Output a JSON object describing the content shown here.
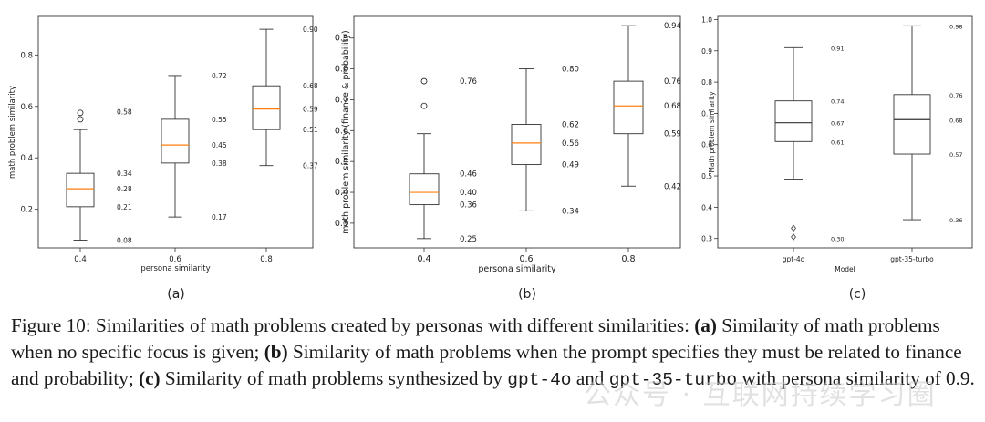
{
  "chart_data": [
    {
      "type": "box",
      "panel_label": "(a)",
      "xlabel": "persona similarity",
      "ylabel": "math problem similarity",
      "categories": [
        "0.4",
        "0.6",
        "0.8"
      ],
      "ylim": [
        0.05,
        0.95
      ],
      "yticks": [
        "0.2",
        "0.4",
        "0.6",
        "0.8"
      ],
      "median_color": "#ff7f0e",
      "boxes": [
        {
          "whislo": 0.08,
          "q1": 0.21,
          "med": 0.28,
          "q3": 0.34,
          "whishi": 0.51,
          "fliers": [
            0.55,
            0.575
          ],
          "labels": [
            {
              "v": 0.58,
              "t": "0.58"
            },
            {
              "v": 0.34,
              "t": "0.34"
            },
            {
              "v": 0.28,
              "t": "0.28"
            },
            {
              "v": 0.21,
              "t": "0.21"
            },
            {
              "v": 0.08,
              "t": "0.08"
            }
          ]
        },
        {
          "whislo": 0.17,
          "q1": 0.38,
          "med": 0.45,
          "q3": 0.55,
          "whishi": 0.72,
          "fliers": [],
          "labels": [
            {
              "v": 0.72,
              "t": "0.72"
            },
            {
              "v": 0.55,
              "t": "0.55"
            },
            {
              "v": 0.45,
              "t": "0.45"
            },
            {
              "v": 0.38,
              "t": "0.38"
            },
            {
              "v": 0.17,
              "t": "0.17"
            }
          ]
        },
        {
          "whislo": 0.37,
          "q1": 0.51,
          "med": 0.59,
          "q3": 0.68,
          "whishi": 0.9,
          "fliers": [],
          "labels": [
            {
              "v": 0.9,
              "t": "0.90"
            },
            {
              "v": 0.68,
              "t": "0.68"
            },
            {
              "v": 0.59,
              "t": "0.59"
            },
            {
              "v": 0.51,
              "t": "0.51"
            },
            {
              "v": 0.37,
              "t": "0.37"
            }
          ]
        }
      ]
    },
    {
      "type": "box",
      "panel_label": "(b)",
      "xlabel": "persona similarity",
      "ylabel": "math problem similarity (finance & probability)",
      "categories": [
        "0.4",
        "0.6",
        "0.8"
      ],
      "ylim": [
        0.22,
        0.97
      ],
      "yticks": [
        "0.3",
        "0.4",
        "0.5",
        "0.6",
        "0.7",
        "0.8",
        "0.9"
      ],
      "median_color": "#ff7f0e",
      "boxes": [
        {
          "whislo": 0.25,
          "q1": 0.36,
          "med": 0.4,
          "q3": 0.46,
          "whishi": 0.59,
          "fliers": [
            0.68,
            0.76
          ],
          "labels": [
            {
              "v": 0.76,
              "t": "0.76"
            },
            {
              "v": 0.46,
              "t": "0.46"
            },
            {
              "v": 0.4,
              "t": "0.40"
            },
            {
              "v": 0.36,
              "t": "0.36"
            },
            {
              "v": 0.25,
              "t": "0.25"
            }
          ]
        },
        {
          "whislo": 0.34,
          "q1": 0.49,
          "med": 0.56,
          "q3": 0.62,
          "whishi": 0.8,
          "fliers": [],
          "labels": [
            {
              "v": 0.8,
              "t": "0.80"
            },
            {
              "v": 0.62,
              "t": "0.62"
            },
            {
              "v": 0.56,
              "t": "0.56"
            },
            {
              "v": 0.49,
              "t": "0.49"
            },
            {
              "v": 0.34,
              "t": "0.34"
            }
          ]
        },
        {
          "whislo": 0.42,
          "q1": 0.59,
          "med": 0.68,
          "q3": 0.76,
          "whishi": 0.94,
          "fliers": [],
          "labels": [
            {
              "v": 0.94,
              "t": "0.94"
            },
            {
              "v": 0.76,
              "t": "0.76"
            },
            {
              "v": 0.68,
              "t": "0.68"
            },
            {
              "v": 0.59,
              "t": "0.59"
            },
            {
              "v": 0.42,
              "t": "0.42"
            }
          ]
        }
      ]
    },
    {
      "type": "box",
      "panel_label": "(c)",
      "xlabel": "Model",
      "ylabel": "Math problem similarity",
      "categories": [
        "gpt-4o",
        "gpt-35-turbo"
      ],
      "ylim": [
        0.27,
        1.01
      ],
      "yticks": [
        "0.3",
        "0.4",
        "0.5",
        "0.6",
        "0.7",
        "0.8",
        "0.9",
        "1.0"
      ],
      "median_color": "#333333",
      "boxes": [
        {
          "whislo": 0.49,
          "q1": 0.61,
          "med": 0.67,
          "q3": 0.74,
          "whishi": 0.91,
          "fliers": [
            0.305,
            0.333
          ],
          "labels": [
            {
              "v": 0.91,
              "t": "0.91"
            },
            {
              "v": 0.74,
              "t": "0.74"
            },
            {
              "v": 0.67,
              "t": "0.67"
            },
            {
              "v": 0.61,
              "t": "0.61"
            },
            {
              "v": 0.3,
              "t": "0.30"
            }
          ]
        },
        {
          "whislo": 0.36,
          "q1": 0.57,
          "med": 0.68,
          "q3": 0.76,
          "whishi": 0.98,
          "fliers": [],
          "labels": [
            {
              "v": 0.98,
              "t": "0.98"
            },
            {
              "v": 0.76,
              "t": "0.76"
            },
            {
              "v": 0.68,
              "t": "0.68"
            },
            {
              "v": 0.57,
              "t": "0.57"
            },
            {
              "v": 0.36,
              "t": "0.36"
            }
          ]
        }
      ]
    }
  ],
  "caption": {
    "prefix": "Figure 10: Similarities of math problems created by personas with different similarities: ",
    "a_label": "(a)",
    "a_text": " Similarity of math problems when no specific focus is given; ",
    "b_label": "(b)",
    "b_text": " Similarity of math problems when the prompt specifies they must be related to finance and probability; ",
    "c_label": "(c)",
    "c_text1": " Similarity of math problems synthesized by ",
    "model1": "gpt-4o",
    "and": " and ",
    "model2": "gpt-35-turbo",
    "c_text2": " with persona similarity of 0.9."
  },
  "watermark": "公众号 · 互联网持续学习圈"
}
